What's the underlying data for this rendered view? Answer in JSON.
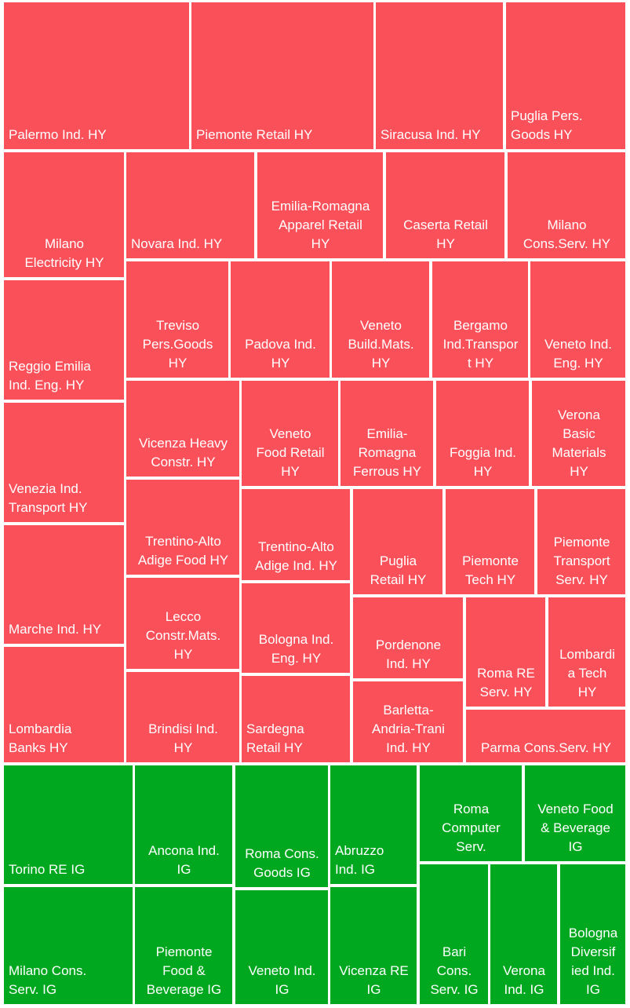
{
  "chart_data": {
    "type": "treemap",
    "title": "",
    "colors": {
      "HY": "#f9505a",
      "IG": "#00a81f"
    },
    "tiles": [
      {
        "label": "Palermo Ind.  HY",
        "text": "Palermo Ind.  HY",
        "group": "HY"
      },
      {
        "label": "Piemonte  Retail HY",
        "text": "Piemonte  Retail HY",
        "group": "HY"
      },
      {
        "label": "Siracusa Ind.  HY",
        "text": "Siracusa Ind.  HY",
        "group": "HY"
      },
      {
        "label": "Puglia Pers. Goods HY",
        "text": "Puglia Pers.\nGoods HY",
        "group": "HY"
      },
      {
        "label": "Milano Electricity HY",
        "text": "Milano\nElectricity HY",
        "group": "HY"
      },
      {
        "label": "Novara Ind. HY",
        "text": "Novara Ind. HY",
        "group": "HY"
      },
      {
        "label": "Emilia-Romagna Apparel Retail HY",
        "text": "Emilia-Romagna\nApparel Retail\nHY",
        "group": "HY"
      },
      {
        "label": "Caserta Retail HY",
        "text": "Caserta Retail\nHY",
        "group": "HY"
      },
      {
        "label": "Milano Cons.Serv. HY",
        "text": "Milano\nCons.Serv. HY",
        "group": "HY"
      },
      {
        "label": "Reggio Emilia Ind. Eng. HY",
        "text": "Reggio Emilia\nInd. Eng. HY",
        "group": "HY"
      },
      {
        "label": "Treviso Pers.Goods HY",
        "text": "Treviso\nPers.Goods\nHY",
        "group": "HY"
      },
      {
        "label": "Padova  Ind. HY",
        "text": "Padova  Ind.\nHY",
        "group": "HY"
      },
      {
        "label": "Veneto Build.Mats. HY",
        "text": "Veneto\nBuild.Mats.\nHY",
        "group": "HY"
      },
      {
        "label": "Bergamo Ind.Transport HY",
        "text": "Bergamo\nInd.Transpor\nt HY",
        "group": "HY"
      },
      {
        "label": "Veneto Ind. Eng. HY",
        "text": "Veneto Ind.\nEng. HY",
        "group": "HY"
      },
      {
        "label": "Venezia Ind. Transport HY",
        "text": "Venezia Ind.\nTransport HY",
        "group": "HY"
      },
      {
        "label": "Vicenza Heavy Constr. HY",
        "text": "Vicenza Heavy\nConstr. HY",
        "group": "HY"
      },
      {
        "label": "Veneto Food Retail HY",
        "text": "Veneto\nFood Retail\nHY",
        "group": "HY"
      },
      {
        "label": "Emilia-Romagna Ferrous HY",
        "text": "Emilia-\nRomagna\nFerrous HY",
        "group": "HY"
      },
      {
        "label": "Foggia Ind. HY",
        "text": "Foggia Ind.\nHY",
        "group": "HY"
      },
      {
        "label": "Verona Basic Materials HY",
        "text": "Verona\nBasic\nMaterials\nHY",
        "group": "HY"
      },
      {
        "label": "Marche Ind. HY",
        "text": "Marche Ind. HY",
        "group": "HY"
      },
      {
        "label": "Trentino-Alto Adige Food HY",
        "text": "Trentino-Alto\nAdige Food HY",
        "group": "HY"
      },
      {
        "label": "Trentino-Alto Adige Ind.  HY",
        "text": "Trentino-Alto\nAdige Ind.  HY",
        "group": "HY"
      },
      {
        "label": "Puglia Retail HY",
        "text": "Puglia\nRetail HY",
        "group": "HY"
      },
      {
        "label": "Piemonte Tech HY",
        "text": "Piemonte\nTech HY",
        "group": "HY"
      },
      {
        "label": "Piemonte Transport Serv. HY",
        "text": "Piemonte\nTransport\nServ. HY",
        "group": "HY"
      },
      {
        "label": "Lecco Constr.Mats. HY",
        "text": "Lecco\nConstr.Mats.\nHY",
        "group": "HY"
      },
      {
        "label": "Bologna Ind. Eng. HY",
        "text": "Bologna Ind.\nEng. HY",
        "group": "HY"
      },
      {
        "label": "Pordenone Ind. HY",
        "text": "Pordenone\nInd. HY",
        "group": "HY"
      },
      {
        "label": "Roma RE Serv. HY",
        "text": "Roma RE\nServ. HY",
        "group": "HY"
      },
      {
        "label": "Lombardia Tech HY",
        "text": "Lombardi\na Tech\nHY",
        "group": "HY"
      },
      {
        "label": "Lombardia Banks HY",
        "text": "Lombardia\nBanks HY",
        "group": "HY"
      },
      {
        "label": "Brindisi Ind. HY",
        "text": "Brindisi Ind.\nHY",
        "group": "HY"
      },
      {
        "label": "Sardegna Retail HY",
        "text": "Sardegna\nRetail HY",
        "group": "HY"
      },
      {
        "label": "Barletta-Andria-Trani Ind. HY",
        "text": "Barletta-\nAndria-Trani\nInd. HY",
        "group": "HY"
      },
      {
        "label": "Parma Cons.Serv. HY",
        "text": "Parma Cons.Serv. HY",
        "group": "HY"
      },
      {
        "label": "Torino RE IG",
        "text": "Torino RE IG",
        "group": "IG"
      },
      {
        "label": "Ancona Ind. IG",
        "text": "Ancona Ind.\nIG",
        "group": "IG"
      },
      {
        "label": "Roma Cons. Goods IG",
        "text": "Roma Cons.\nGoods IG",
        "group": "IG"
      },
      {
        "label": "Abruzzo Ind. IG",
        "text": "Abruzzo\nInd. IG",
        "group": "IG"
      },
      {
        "label": "Roma Computer Serv.",
        "text": "Roma\nComputer\nServ.",
        "group": "IG"
      },
      {
        "label": "Veneto Food & Beverage IG",
        "text": "Veneto Food\n& Beverage\nIG",
        "group": "IG"
      },
      {
        "label": "Milano Cons. Serv. IG",
        "text": "Milano Cons.\nServ. IG",
        "group": "IG"
      },
      {
        "label": "Piemonte Food & Beverage IG",
        "text": "Piemonte\nFood &\nBeverage IG",
        "group": "IG"
      },
      {
        "label": "Veneto Ind. IG",
        "text": "Veneto Ind.\nIG",
        "group": "IG"
      },
      {
        "label": "Vicenza RE IG",
        "text": "Vicenza RE\nIG",
        "group": "IG"
      },
      {
        "label": "Bari Cons. Serv. IG",
        "text": "Bari\nCons.\nServ. IG",
        "group": "IG"
      },
      {
        "label": "Verona Ind. IG",
        "text": "Verona\nInd.  IG",
        "group": "IG"
      },
      {
        "label": "Bologna Diversified Ind. IG",
        "text": "Bologna\nDiversif\nied Ind.\nIG",
        "group": "IG"
      }
    ]
  }
}
